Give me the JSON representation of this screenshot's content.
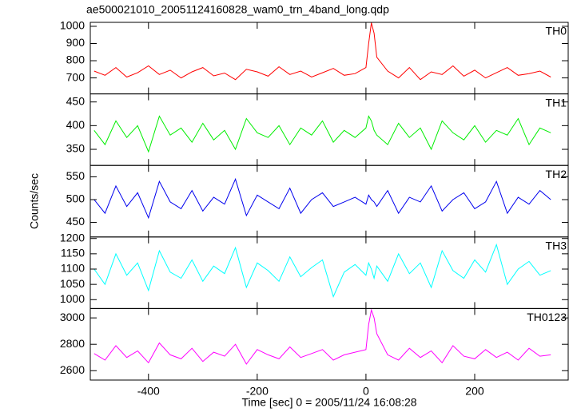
{
  "chart_data": {
    "type": "line",
    "title": "ae500021010_20051124160828_wam0_trn_4band_long.qdp",
    "xlabel": "Time [sec] 0 = 2005/11/24 16:08:28",
    "ylabel": "Counts/sec",
    "xlim": [
      -507,
      372
    ],
    "xticks": [
      -400,
      -200,
      0,
      200
    ],
    "x": [
      -500,
      -480,
      -460,
      -440,
      -420,
      -400,
      -380,
      -360,
      -340,
      -320,
      -300,
      -280,
      -260,
      -240,
      -220,
      -200,
      -180,
      -160,
      -140,
      -120,
      -100,
      -80,
      -60,
      -40,
      -20,
      0,
      5,
      10,
      15,
      20,
      40,
      60,
      80,
      100,
      120,
      140,
      160,
      180,
      200,
      220,
      240,
      260,
      280,
      300,
      320,
      340
    ],
    "series": [
      {
        "name": "TH0",
        "color": "#ff0000",
        "ylim": [
          607,
          1023
        ],
        "yticks": [
          700,
          800,
          900,
          1000
        ],
        "values": [
          740,
          715,
          760,
          705,
          730,
          770,
          720,
          745,
          700,
          735,
          760,
          712,
          728,
          690,
          750,
          735,
          710,
          765,
          720,
          740,
          705,
          730,
          755,
          715,
          725,
          760,
          900,
          1020,
          960,
          820,
          740,
          700,
          760,
          690,
          735,
          720,
          770,
          710,
          745,
          700,
          730,
          760,
          715,
          725,
          740,
          705
        ]
      },
      {
        "name": "TH1",
        "color": "#00ee00",
        "ylim": [
          316,
          467
        ],
        "yticks": [
          350,
          400,
          450
        ],
        "values": [
          390,
          360,
          410,
          375,
          400,
          345,
          420,
          380,
          395,
          365,
          405,
          370,
          390,
          350,
          415,
          385,
          375,
          400,
          360,
          395,
          380,
          410,
          365,
          390,
          375,
          395,
          420,
          410,
          390,
          380,
          360,
          405,
          375,
          395,
          350,
          410,
          385,
          370,
          400,
          365,
          390,
          380,
          415,
          360,
          395,
          385
        ]
      },
      {
        "name": "TH2",
        "color": "#0000ee",
        "ylim": [
          418,
          575
        ],
        "yticks": [
          450,
          500,
          550
        ],
        "values": [
          500,
          470,
          530,
          485,
          515,
          460,
          540,
          495,
          480,
          520,
          475,
          505,
          490,
          545,
          465,
          510,
          495,
          480,
          525,
          470,
          500,
          515,
          485,
          495,
          505,
          490,
          510,
          500,
          495,
          485,
          520,
          470,
          505,
          495,
          530,
          475,
          500,
          515,
          480,
          495,
          540,
          470,
          505,
          490,
          520,
          500
        ]
      },
      {
        "name": "TH3",
        "color": "#00ffff",
        "ylim": [
          971,
          1205
        ],
        "yticks": [
          1000,
          1050,
          1100,
          1150,
          1200
        ],
        "values": [
          1100,
          1050,
          1150,
          1080,
          1120,
          1030,
          1160,
          1090,
          1070,
          1130,
          1060,
          1110,
          1085,
          1170,
          1040,
          1120,
          1095,
          1060,
          1140,
          1075,
          1105,
          1130,
          1010,
          1090,
          1115,
          1080,
          1120,
          1100,
          1070,
          1110,
          1060,
          1150,
          1085,
          1120,
          1040,
          1160,
          1095,
          1070,
          1130,
          1090,
          1180,
          1050,
          1100,
          1125,
          1080,
          1095
        ]
      },
      {
        "name": "TH0123",
        "color": "#ff00ff",
        "ylim": [
          2529,
          3071
        ],
        "yticks": [
          2600,
          2800,
          3000
        ],
        "values": [
          2730,
          2680,
          2790,
          2700,
          2750,
          2660,
          2810,
          2720,
          2690,
          2770,
          2670,
          2740,
          2710,
          2800,
          2650,
          2760,
          2720,
          2690,
          2780,
          2700,
          2730,
          2760,
          2680,
          2720,
          2740,
          2760,
          2950,
          3060,
          3000,
          2880,
          2720,
          2680,
          2770,
          2700,
          2750,
          2660,
          2790,
          2710,
          2690,
          2760,
          2700,
          2740,
          2680,
          2770,
          2710,
          2720
        ]
      }
    ]
  }
}
